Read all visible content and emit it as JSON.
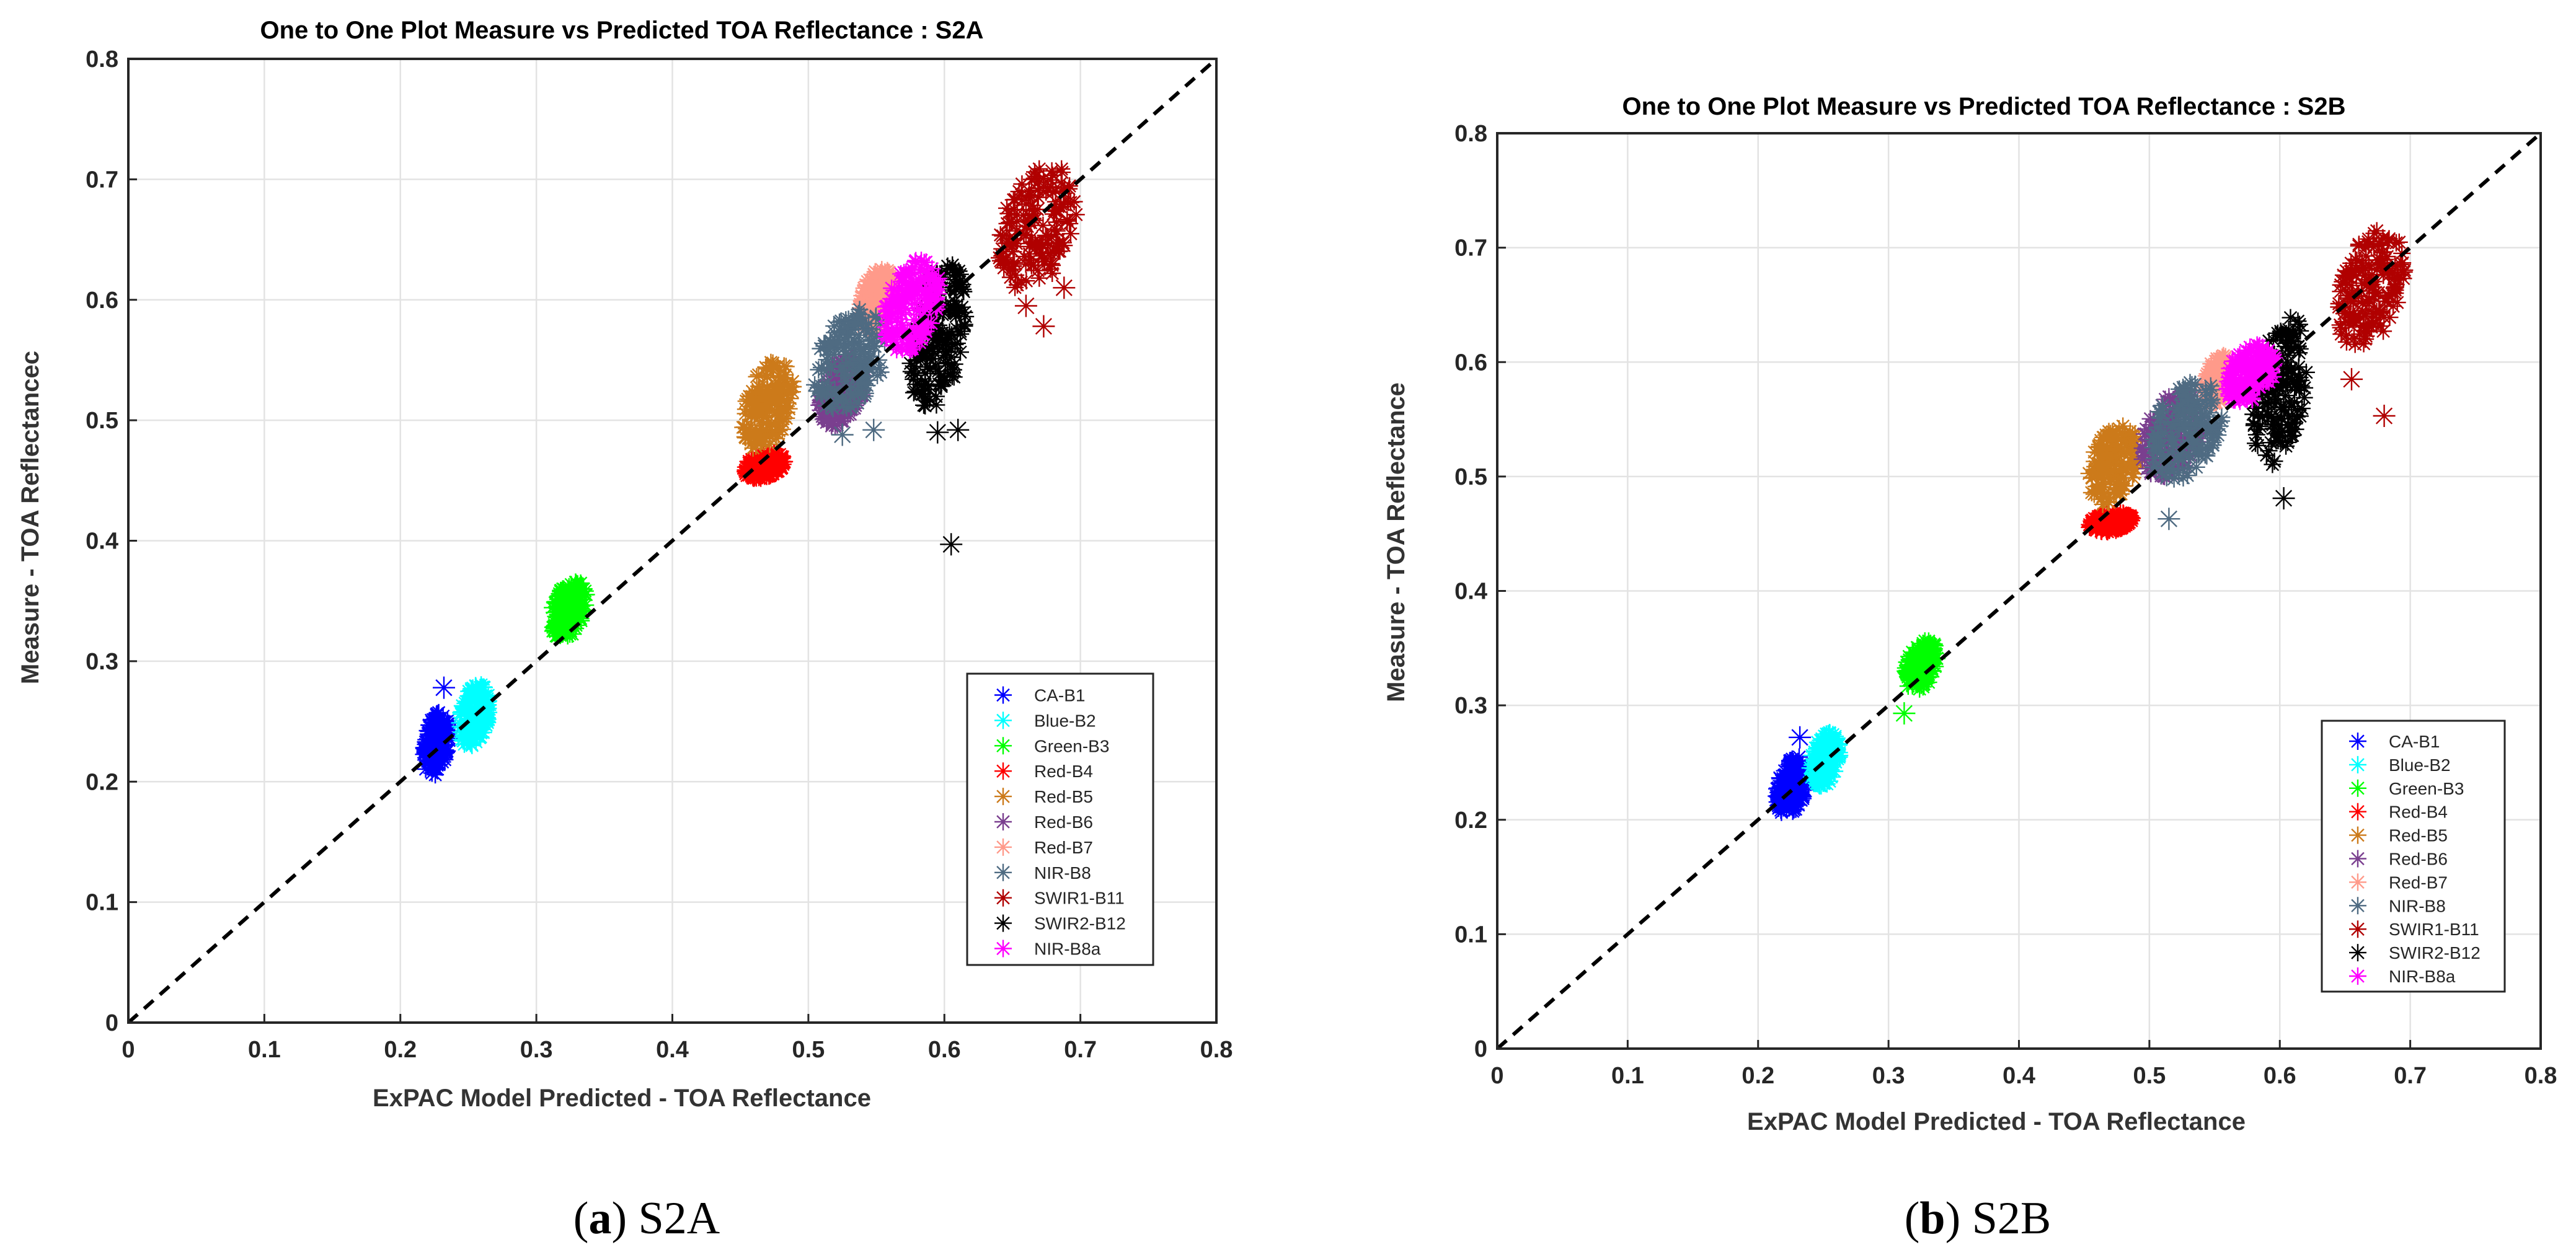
{
  "chart_data": [
    {
      "id": "s2a",
      "type": "scatter",
      "title": "One to One Plot Measure vs Predicted TOA Reflectance : S2A",
      "xlabel": "ExPAC Model Predicted - TOA Reflectance",
      "ylabel": "Measure - TOA Reflectancec",
      "xlim": [
        0,
        0.8
      ],
      "ylim": [
        0,
        0.8
      ],
      "xticks": [
        0,
        0.1,
        0.2,
        0.3,
        0.4,
        0.5,
        0.6,
        0.7,
        0.8
      ],
      "yticks": [
        0,
        0.1,
        0.2,
        0.3,
        0.4,
        0.5,
        0.6,
        0.7,
        0.8
      ],
      "xtick_labels": [
        "0",
        "0.1",
        "0.2",
        "0.3",
        "0.4",
        "0.5",
        "0.6",
        "0.7",
        "0.8"
      ],
      "ytick_labels": [
        "0",
        "0.1",
        "0.2",
        "0.3",
        "0.4",
        "0.5",
        "0.6",
        "0.7",
        "0.8"
      ],
      "grid": true,
      "one_to_one_line": true,
      "legend_position": "lower-right",
      "caption_letter": "a",
      "caption_text": ") S2A",
      "series": [
        {
          "name": "CA-B1",
          "color": "#0000ff",
          "x_range": [
            0.215,
            0.238
          ],
          "y_range": [
            0.2,
            0.265
          ],
          "outliers": [
            [
              0.232,
              0.278
            ]
          ]
        },
        {
          "name": "Blue-B2",
          "color": "#00ffff",
          "x_range": [
            0.24,
            0.268
          ],
          "y_range": [
            0.225,
            0.285
          ],
          "outliers": []
        },
        {
          "name": "Green-B3",
          "color": "#00ff00",
          "x_range": [
            0.308,
            0.34
          ],
          "y_range": [
            0.315,
            0.37
          ],
          "outliers": []
        },
        {
          "name": "Red-B4",
          "color": "#ff0000",
          "x_range": [
            0.45,
            0.485
          ],
          "y_range": [
            0.45,
            0.475
          ],
          "outliers": []
        },
        {
          "name": "Red-B5",
          "color": "#cc7a1a",
          "x_range": [
            0.448,
            0.492
          ],
          "y_range": [
            0.47,
            0.555
          ],
          "outliers": []
        },
        {
          "name": "Red-B6",
          "color": "#7a3f8f",
          "x_range": [
            0.505,
            0.545
          ],
          "y_range": [
            0.49,
            0.56
          ],
          "outliers": []
        },
        {
          "name": "Red-B7",
          "color": "#ff9a8a",
          "x_range": [
            0.535,
            0.565
          ],
          "y_range": [
            0.57,
            0.63
          ],
          "outliers": []
        },
        {
          "name": "NIR-B8",
          "color": "#4f6b82",
          "x_range": [
            0.5,
            0.562
          ],
          "y_range": [
            0.5,
            0.6
          ],
          "outliers": [
            [
              0.525,
              0.488
            ],
            [
              0.548,
              0.492
            ]
          ]
        },
        {
          "name": "SWIR1-B11",
          "color": "#b00000",
          "x_range": [
            0.635,
            0.702
          ],
          "y_range": [
            0.6,
            0.72
          ],
          "outliers": [
            [
              0.673,
              0.578
            ],
            [
              0.688,
              0.61
            ],
            [
              0.66,
              0.595
            ]
          ]
        },
        {
          "name": "SWIR2-B12",
          "color": "#000000",
          "x_range": [
            0.57,
            0.62
          ],
          "y_range": [
            0.5,
            0.64
          ],
          "outliers": [
            [
              0.605,
              0.397
            ],
            [
              0.595,
              0.49
            ],
            [
              0.61,
              0.492
            ]
          ]
        },
        {
          "name": "NIR-B8a",
          "color": "#ff00ff",
          "x_range": [
            0.552,
            0.6
          ],
          "y_range": [
            0.55,
            0.64
          ],
          "outliers": []
        }
      ]
    },
    {
      "id": "s2b",
      "type": "scatter",
      "title": "One to One Plot Measure vs Predicted TOA Reflectance : S2B",
      "xlabel": "ExPAC Model Predicted - TOA Reflectance",
      "ylabel": "Measure - TOA Reflectance",
      "xlim": [
        0,
        0.8
      ],
      "ylim": [
        0,
        0.8
      ],
      "xticks": [
        0,
        0.1,
        0.2,
        0.3,
        0.4,
        0.5,
        0.6,
        0.7,
        0.8
      ],
      "yticks": [
        0,
        0.1,
        0.2,
        0.3,
        0.4,
        0.5,
        0.6,
        0.7,
        0.8
      ],
      "xtick_labels": [
        "0",
        "0.1",
        "0.2",
        "0.3",
        "0.4",
        "0.5",
        "0.6",
        "0.7",
        "0.8"
      ],
      "ytick_labels": [
        "0",
        "0.1",
        "0.2",
        "0.3",
        "0.4",
        "0.5",
        "0.6",
        "0.7",
        "0.8"
      ],
      "grid": true,
      "one_to_one_line": true,
      "legend_position": "lower-right",
      "caption_letter": "b",
      "caption_text": ") S2B",
      "series": [
        {
          "name": "CA-B1",
          "color": "#0000ff",
          "x_range": [
            0.212,
            0.24
          ],
          "y_range": [
            0.2,
            0.26
          ],
          "outliers": [
            [
              0.232,
              0.272
            ]
          ]
        },
        {
          "name": "Blue-B2",
          "color": "#00ffff",
          "x_range": [
            0.238,
            0.265
          ],
          "y_range": [
            0.225,
            0.28
          ],
          "outliers": []
        },
        {
          "name": "Green-B3",
          "color": "#00ff00",
          "x_range": [
            0.31,
            0.34
          ],
          "y_range": [
            0.31,
            0.36
          ],
          "outliers": [
            [
              0.312,
              0.293
            ]
          ]
        },
        {
          "name": "Red-B4",
          "color": "#ff0000",
          "x_range": [
            0.45,
            0.49
          ],
          "y_range": [
            0.45,
            0.47
          ],
          "outliers": []
        },
        {
          "name": "Red-B5",
          "color": "#cc7a1a",
          "x_range": [
            0.45,
            0.495
          ],
          "y_range": [
            0.47,
            0.55
          ],
          "outliers": []
        },
        {
          "name": "Red-B6",
          "color": "#7a3f8f",
          "x_range": [
            0.49,
            0.545
          ],
          "y_range": [
            0.49,
            0.58
          ],
          "outliers": []
        },
        {
          "name": "Red-B7",
          "color": "#ff9a8a",
          "x_range": [
            0.54,
            0.565
          ],
          "y_range": [
            0.56,
            0.61
          ],
          "outliers": []
        },
        {
          "name": "NIR-B8",
          "color": "#4f6b82",
          "x_range": [
            0.495,
            0.56
          ],
          "y_range": [
            0.49,
            0.59
          ],
          "outliers": [
            [
              0.515,
              0.463
            ]
          ]
        },
        {
          "name": "SWIR1-B11",
          "color": "#b00000",
          "x_range": [
            0.64,
            0.7
          ],
          "y_range": [
            0.6,
            0.725
          ],
          "outliers": [
            [
              0.68,
              0.553
            ],
            [
              0.655,
              0.585
            ]
          ]
        },
        {
          "name": "SWIR2-B12",
          "color": "#000000",
          "x_range": [
            0.575,
            0.625
          ],
          "y_range": [
            0.5,
            0.65
          ],
          "outliers": [
            [
              0.603,
              0.481
            ]
          ]
        },
        {
          "name": "NIR-B8a",
          "color": "#ff00ff",
          "x_range": [
            0.555,
            0.6
          ],
          "y_range": [
            0.56,
            0.62
          ],
          "outliers": []
        }
      ]
    }
  ]
}
